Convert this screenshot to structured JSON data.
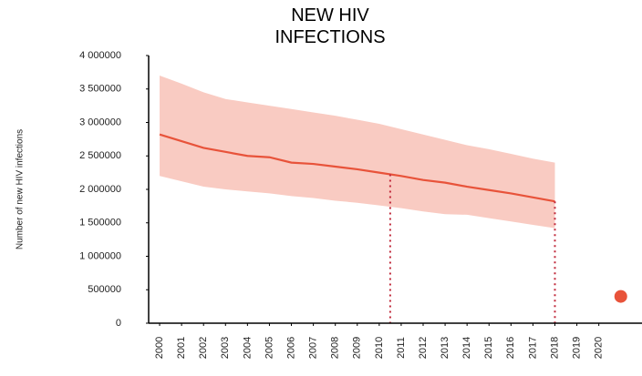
{
  "chart_data": {
    "type": "line",
    "title": "NEW HIV INFECTIONS",
    "y_label": "Number of new HIV infections",
    "x": [
      2000,
      2001,
      2002,
      2003,
      2004,
      2005,
      2006,
      2007,
      2008,
      2009,
      2010,
      2011,
      2012,
      2013,
      2014,
      2015,
      2016,
      2017,
      2018
    ],
    "series": [
      {
        "name": "Upper bound",
        "color": "#f9cbc2",
        "values": [
          3700000,
          3580000,
          3450000,
          3350000,
          3300000,
          3250000,
          3200000,
          3150000,
          3100000,
          3040000,
          2980000,
          2900000,
          2820000,
          2740000,
          2660000,
          2600000,
          2530000,
          2460000,
          2400000
        ]
      },
      {
        "name": "Lower bound",
        "color": "#f9cbc2",
        "values": [
          2200000,
          2120000,
          2040000,
          2000000,
          1970000,
          1940000,
          1900000,
          1870000,
          1830000,
          1800000,
          1760000,
          1720000,
          1670000,
          1630000,
          1620000,
          1570000,
          1520000,
          1470000,
          1420000
        ]
      },
      {
        "name": "New HIV infections",
        "color": "#e8533a",
        "values": [
          2820000,
          2720000,
          2620000,
          2560000,
          2500000,
          2480000,
          2400000,
          2380000,
          2340000,
          2300000,
          2250000,
          2200000,
          2140000,
          2100000,
          2040000,
          1990000,
          1940000,
          1880000,
          1820000
        ]
      }
    ],
    "target": {
      "x": 2021,
      "value": 400000,
      "color": "#e8533a"
    },
    "reference_lines": {
      "x": [
        2010.5,
        2018
      ],
      "values": [
        2225000,
        1820000
      ],
      "color": "#c0283a"
    },
    "xlim": [
      1999.5,
      2021.8
    ],
    "xticks": [
      2000,
      2001,
      2002,
      2003,
      2004,
      2005,
      2006,
      2007,
      2008,
      2009,
      2010,
      2011,
      2012,
      2013,
      2014,
      2015,
      2016,
      2017,
      2018,
      2019,
      2020
    ],
    "ylim": [
      0,
      4000000
    ],
    "yticks": [
      0,
      500000,
      {
        "value": 1000000,
        "label": "1 000000"
      },
      {
        "value": 1500000,
        "label": "1 500000"
      },
      {
        "value": 2000000,
        "label": "2 000000"
      },
      {
        "value": 2500000,
        "label": "2 500000"
      },
      {
        "value": 3000000,
        "label": "3 000000"
      },
      {
        "value": 3500000,
        "label": "3 500000"
      },
      {
        "value": 4000000,
        "label": "4 000000"
      }
    ]
  }
}
